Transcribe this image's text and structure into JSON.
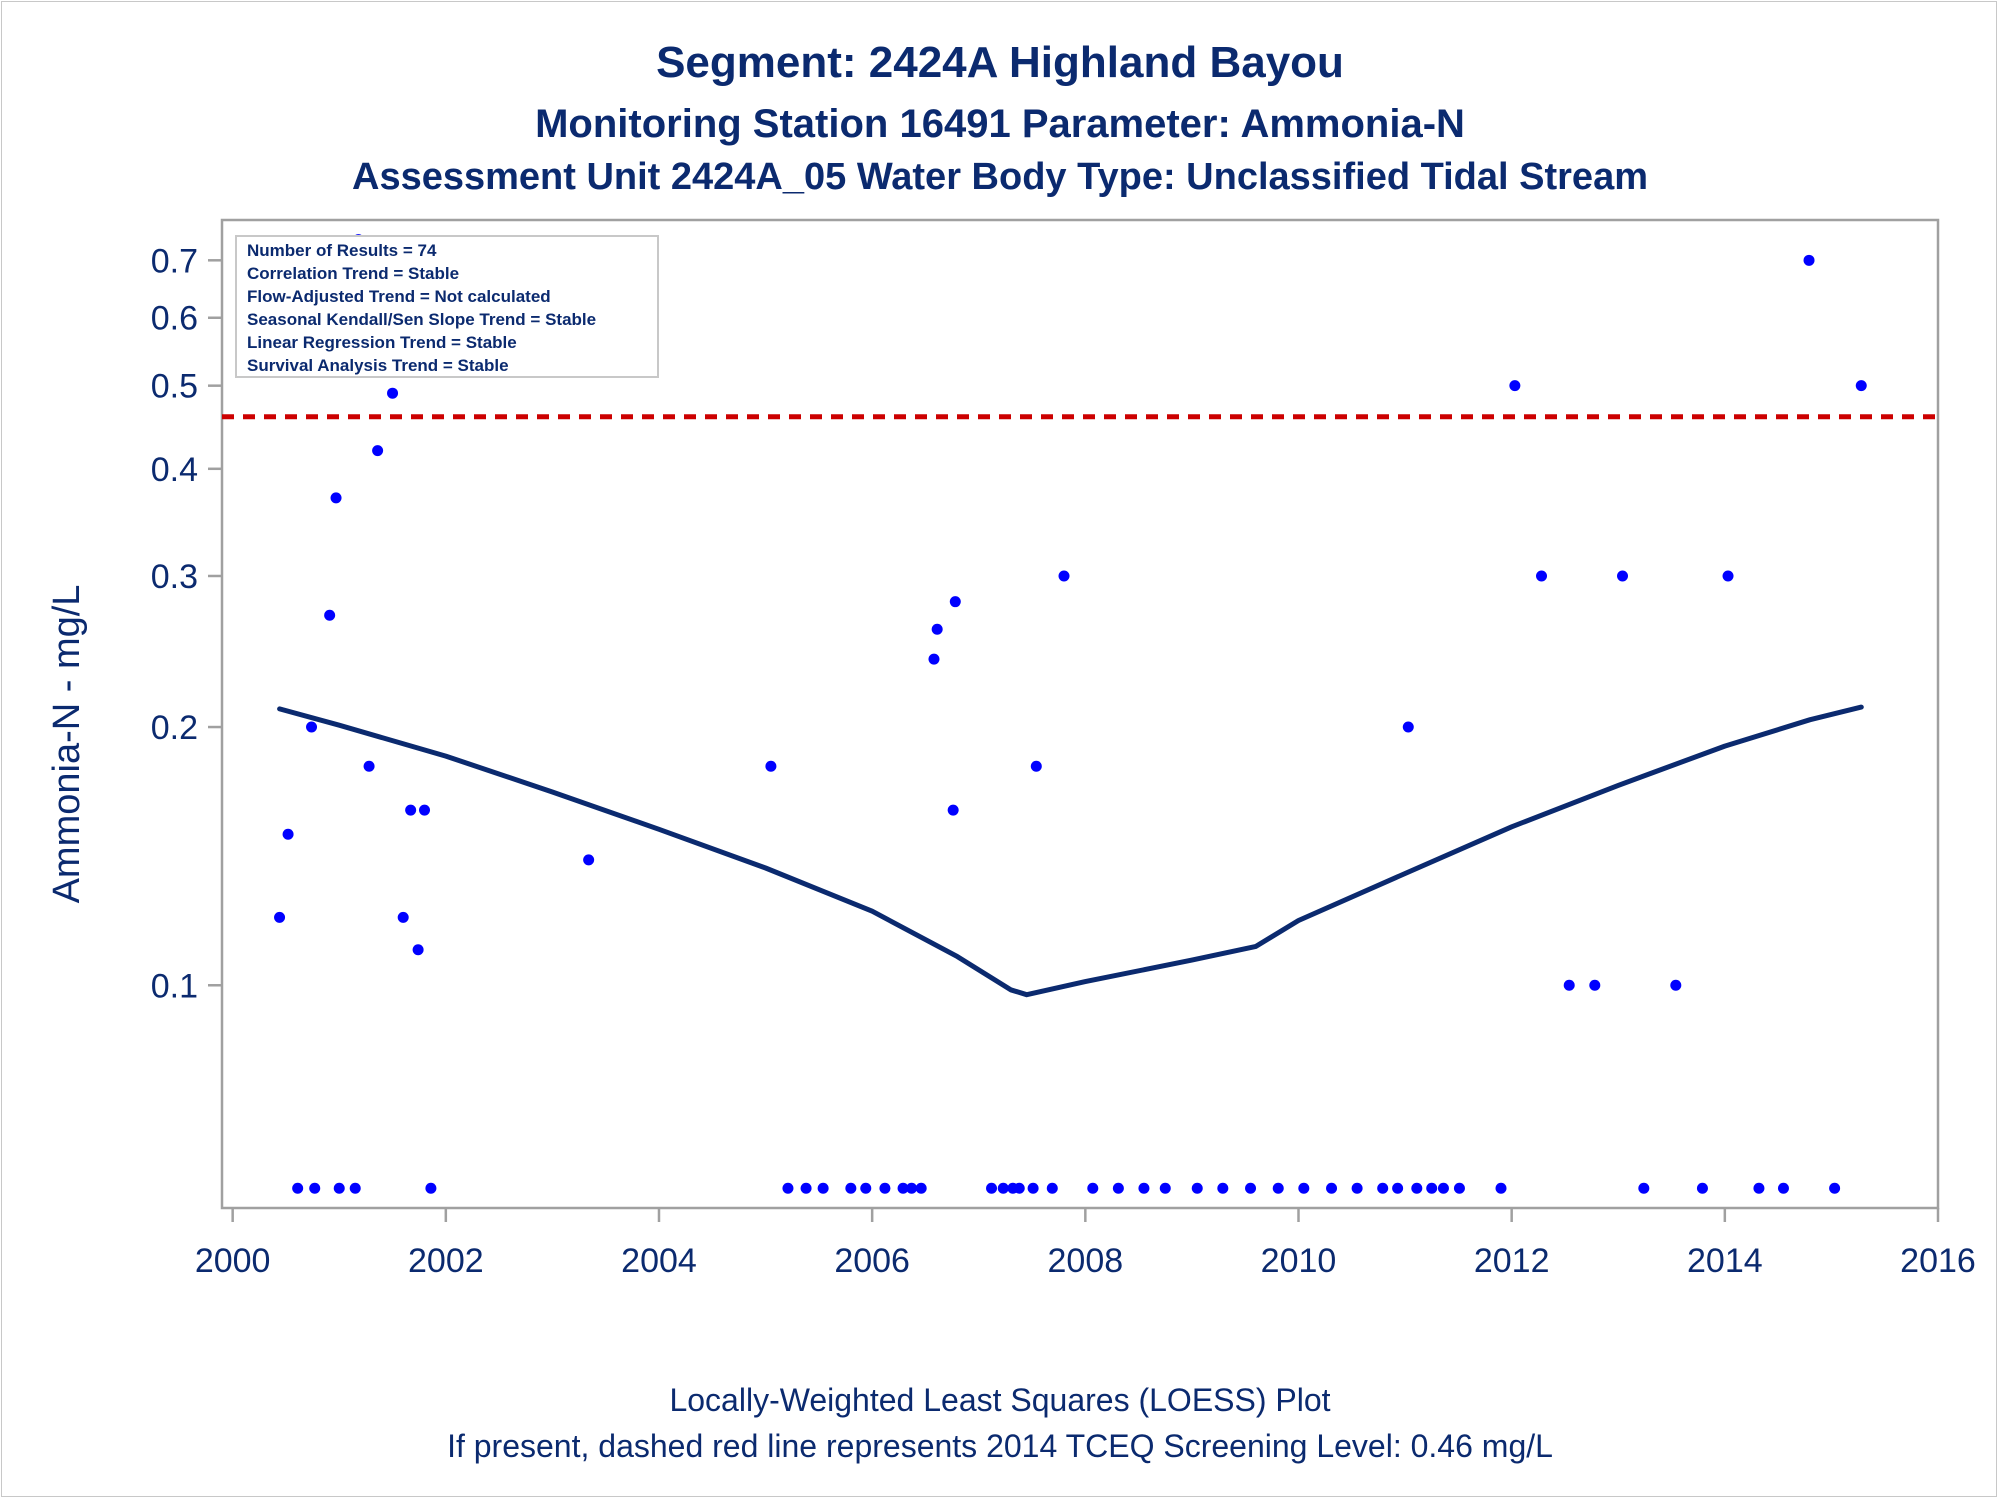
{
  "title": {
    "line1": "Segment: 2424A  Highland Bayou",
    "line2": "Monitoring Station 16491 Parameter: Ammonia-N",
    "line3": "Assessment Unit 2424A_05   Water Body Type: Unclassified Tidal Stream"
  },
  "footnote": {
    "line1": "Locally-Weighted Least Squares (LOESS) Plot",
    "line2": "If present, dashed red line represents 2014 TCEQ Screening Level: 0.46 mg/L"
  },
  "info_box": [
    "Number of Results = 74",
    "Correlation Trend = Stable",
    "Flow-Adjusted Trend = Not calculated",
    "Seasonal Kendall/Sen Slope Trend = Stable",
    "Linear Regression Trend = Stable",
    "Survival Analysis Trend = Stable"
  ],
  "colors": {
    "text": "#0b2a6f",
    "points": "#0000ff",
    "loess": "#0b2a6f",
    "screening_line": "#cc0000",
    "frame": "#a0a0a0"
  },
  "chart_data": {
    "type": "scatter",
    "xlabel": "",
    "ylabel": "Ammonia-N - mg/L",
    "y_scale": "log",
    "xlim": [
      1999.9,
      2016.0
    ],
    "ylim": [
      0.055,
      0.78
    ],
    "x_ticks": [
      2000,
      2002,
      2004,
      2006,
      2008,
      2010,
      2012,
      2014,
      2016
    ],
    "y_ticks": [
      0.1,
      0.2,
      0.3,
      0.4,
      0.5,
      0.6,
      0.7
    ],
    "y_tick_labels": [
      "0.1",
      "0.2",
      "0.3",
      "0.4",
      "0.5",
      "0.6",
      "0.7"
    ],
    "grid": false,
    "legend": "none",
    "screening_level": 0.46,
    "points": [
      {
        "x": 2000.44,
        "y": 0.12
      },
      {
        "x": 2000.52,
        "y": 0.15
      },
      {
        "x": 2000.74,
        "y": 0.2
      },
      {
        "x": 2000.91,
        "y": 0.27
      },
      {
        "x": 2000.97,
        "y": 0.37
      },
      {
        "x": 2001.18,
        "y": 0.74
      },
      {
        "x": 2001.28,
        "y": 0.18
      },
      {
        "x": 2001.36,
        "y": 0.42
      },
      {
        "x": 2001.5,
        "y": 0.49
      },
      {
        "x": 2001.6,
        "y": 0.12
      },
      {
        "x": 2001.67,
        "y": 0.16
      },
      {
        "x": 2001.74,
        "y": 0.11
      },
      {
        "x": 2001.8,
        "y": 0.16
      },
      {
        "x": 2003.34,
        "y": 0.14
      },
      {
        "x": 2005.05,
        "y": 0.18
      },
      {
        "x": 2006.58,
        "y": 0.24
      },
      {
        "x": 2006.61,
        "y": 0.26
      },
      {
        "x": 2006.76,
        "y": 0.16
      },
      {
        "x": 2006.78,
        "y": 0.28
      },
      {
        "x": 2007.54,
        "y": 0.18
      },
      {
        "x": 2007.8,
        "y": 0.3
      },
      {
        "x": 2011.03,
        "y": 0.2
      },
      {
        "x": 2012.03,
        "y": 0.5
      },
      {
        "x": 2012.28,
        "y": 0.3
      },
      {
        "x": 2012.54,
        "y": 0.1
      },
      {
        "x": 2012.78,
        "y": 0.1
      },
      {
        "x": 2013.04,
        "y": 0.3
      },
      {
        "x": 2013.54,
        "y": 0.1
      },
      {
        "x": 2014.03,
        "y": 0.3
      },
      {
        "x": 2014.79,
        "y": 0.7
      },
      {
        "x": 2015.28,
        "y": 0.5
      }
    ],
    "below_axis_points": {
      "y": 0.058,
      "x": [
        2000.61,
        2000.77,
        2001.0,
        2001.15,
        2001.86,
        2005.21,
        2005.38,
        2005.54,
        2005.8,
        2005.94,
        2006.12,
        2006.29,
        2006.37,
        2006.46,
        2007.12,
        2007.23,
        2007.32,
        2007.38,
        2007.51,
        2007.69,
        2008.07,
        2008.31,
        2008.55,
        2008.75,
        2009.05,
        2009.29,
        2009.55,
        2009.81,
        2010.05,
        2010.31,
        2010.55,
        2010.79,
        2010.93,
        2011.11,
        2011.25,
        2011.36,
        2011.51,
        2011.9,
        2013.24,
        2013.79,
        2014.32,
        2014.55,
        2015.03
      ]
    },
    "loess": {
      "x": [
        2000.44,
        2001.0,
        2002.0,
        2003.0,
        2004.0,
        2005.0,
        2006.0,
        2006.8,
        2007.3,
        2007.45,
        2008.0,
        2009.0,
        2009.6,
        2010.0,
        2011.0,
        2012.0,
        2013.0,
        2014.0,
        2014.8,
        2015.28
      ],
      "y": [
        0.21,
        0.201,
        0.185,
        0.168,
        0.152,
        0.137,
        0.122,
        0.108,
        0.0988,
        0.0975,
        0.101,
        0.107,
        0.111,
        0.119,
        0.135,
        0.153,
        0.171,
        0.19,
        0.204,
        0.211
      ]
    }
  }
}
